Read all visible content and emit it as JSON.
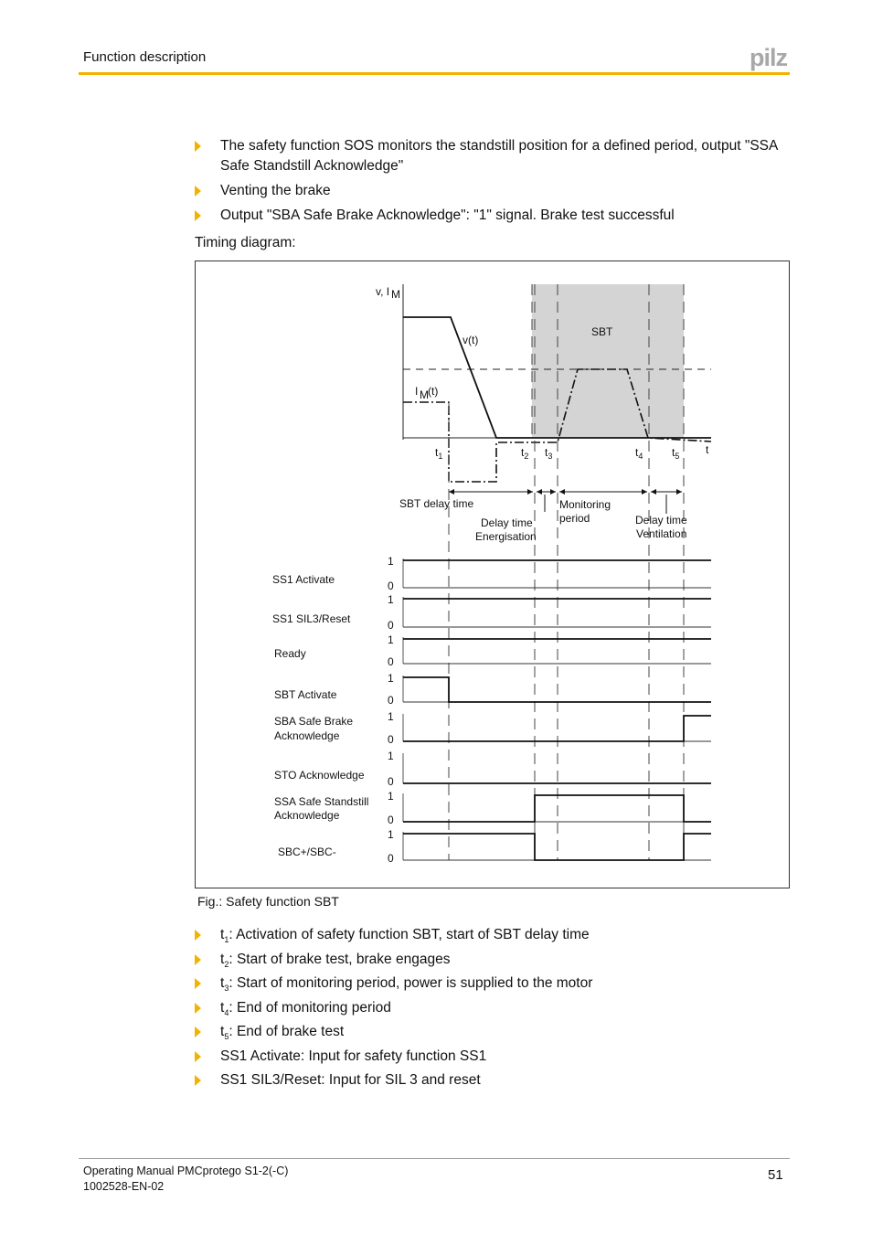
{
  "header": {
    "section": "Function description",
    "logo": "pilz",
    "accent": "#f2b200"
  },
  "bullets_top": [
    "The safety function SOS monitors the standstill position for a defined period, output \"SSA Safe Standstill Acknowledge\"",
    "Venting the brake",
    "Output \"SBA Safe Brake Acknowledge\": \"1\" signal. Brake test successful"
  ],
  "timing_label": "Timing diagram:",
  "diagram": {
    "y_axis_label": "v, I",
    "y_axis_sub": "M",
    "v_label": "v(t)",
    "im_label": "I",
    "im_sub": "M",
    "im_suffix": "(t)",
    "t_label": "t",
    "sbt_label": "SBT",
    "markers": [
      "t1",
      "t2",
      "t3",
      "t4",
      "t5"
    ],
    "intervals": {
      "sbt_delay": "SBT delay time",
      "delay_energ_1": "Delay time",
      "delay_energ_2": "Energisation",
      "monitoring_1": "Monitoring",
      "monitoring_2": "period",
      "delay_vent_1": "Delay time",
      "delay_vent_2": "Ventilation"
    },
    "level_high": "1",
    "level_low": "0",
    "segments": [
      "start-t1",
      "t1-t2",
      "t2-t3",
      "t3-t4",
      "t4-t5",
      "t5-end"
    ],
    "signals": [
      {
        "name": [
          "SS1 Activate"
        ],
        "levels": [
          1,
          1,
          1,
          1,
          1,
          1
        ]
      },
      {
        "name": [
          "SS1 SIL3/Reset"
        ],
        "levels": [
          1,
          1,
          1,
          1,
          1,
          1
        ]
      },
      {
        "name": [
          "Ready"
        ],
        "levels": [
          1,
          1,
          1,
          1,
          1,
          1
        ]
      },
      {
        "name": [
          "SBT Activate"
        ],
        "levels": [
          1,
          0,
          0,
          0,
          0,
          0
        ]
      },
      {
        "name": [
          "SBA Safe Brake",
          "Acknowledge"
        ],
        "levels": [
          0,
          0,
          0,
          0,
          0,
          1
        ]
      },
      {
        "name": [
          "STO Acknowledge"
        ],
        "levels": [
          0,
          0,
          0,
          0,
          0,
          0
        ]
      },
      {
        "name": [
          "SSA Safe Standstill",
          " Acknowledge"
        ],
        "levels": [
          0,
          0,
          1,
          1,
          1,
          0
        ]
      },
      {
        "name": [
          "SBC+/SBC-"
        ],
        "levels": [
          1,
          1,
          0,
          0,
          0,
          1
        ]
      }
    ]
  },
  "caption": "Fig.: Safety function SBT",
  "bullets_bottom": [
    {
      "sub": "1",
      "text": ": Activation of safety function SBT, start of SBT delay time"
    },
    {
      "sub": "2",
      "text": ": Start of brake test, brake engages"
    },
    {
      "sub": "3",
      "text": ": Start of monitoring period, power is supplied to the motor"
    },
    {
      "sub": "4",
      "text": ": End of monitoring period"
    },
    {
      "sub": "5",
      "text": ": End of brake test"
    },
    {
      "sub": "",
      "text": "SS1 Activate: Input for safety function SS1"
    },
    {
      "sub": "",
      "text": "SS1 SIL3/Reset: Input for SIL 3 and reset"
    }
  ],
  "footer": {
    "manual": "Operating Manual PMCprotego S1-2(-C)",
    "doc_no": "1002528-EN-02",
    "page": "51"
  }
}
